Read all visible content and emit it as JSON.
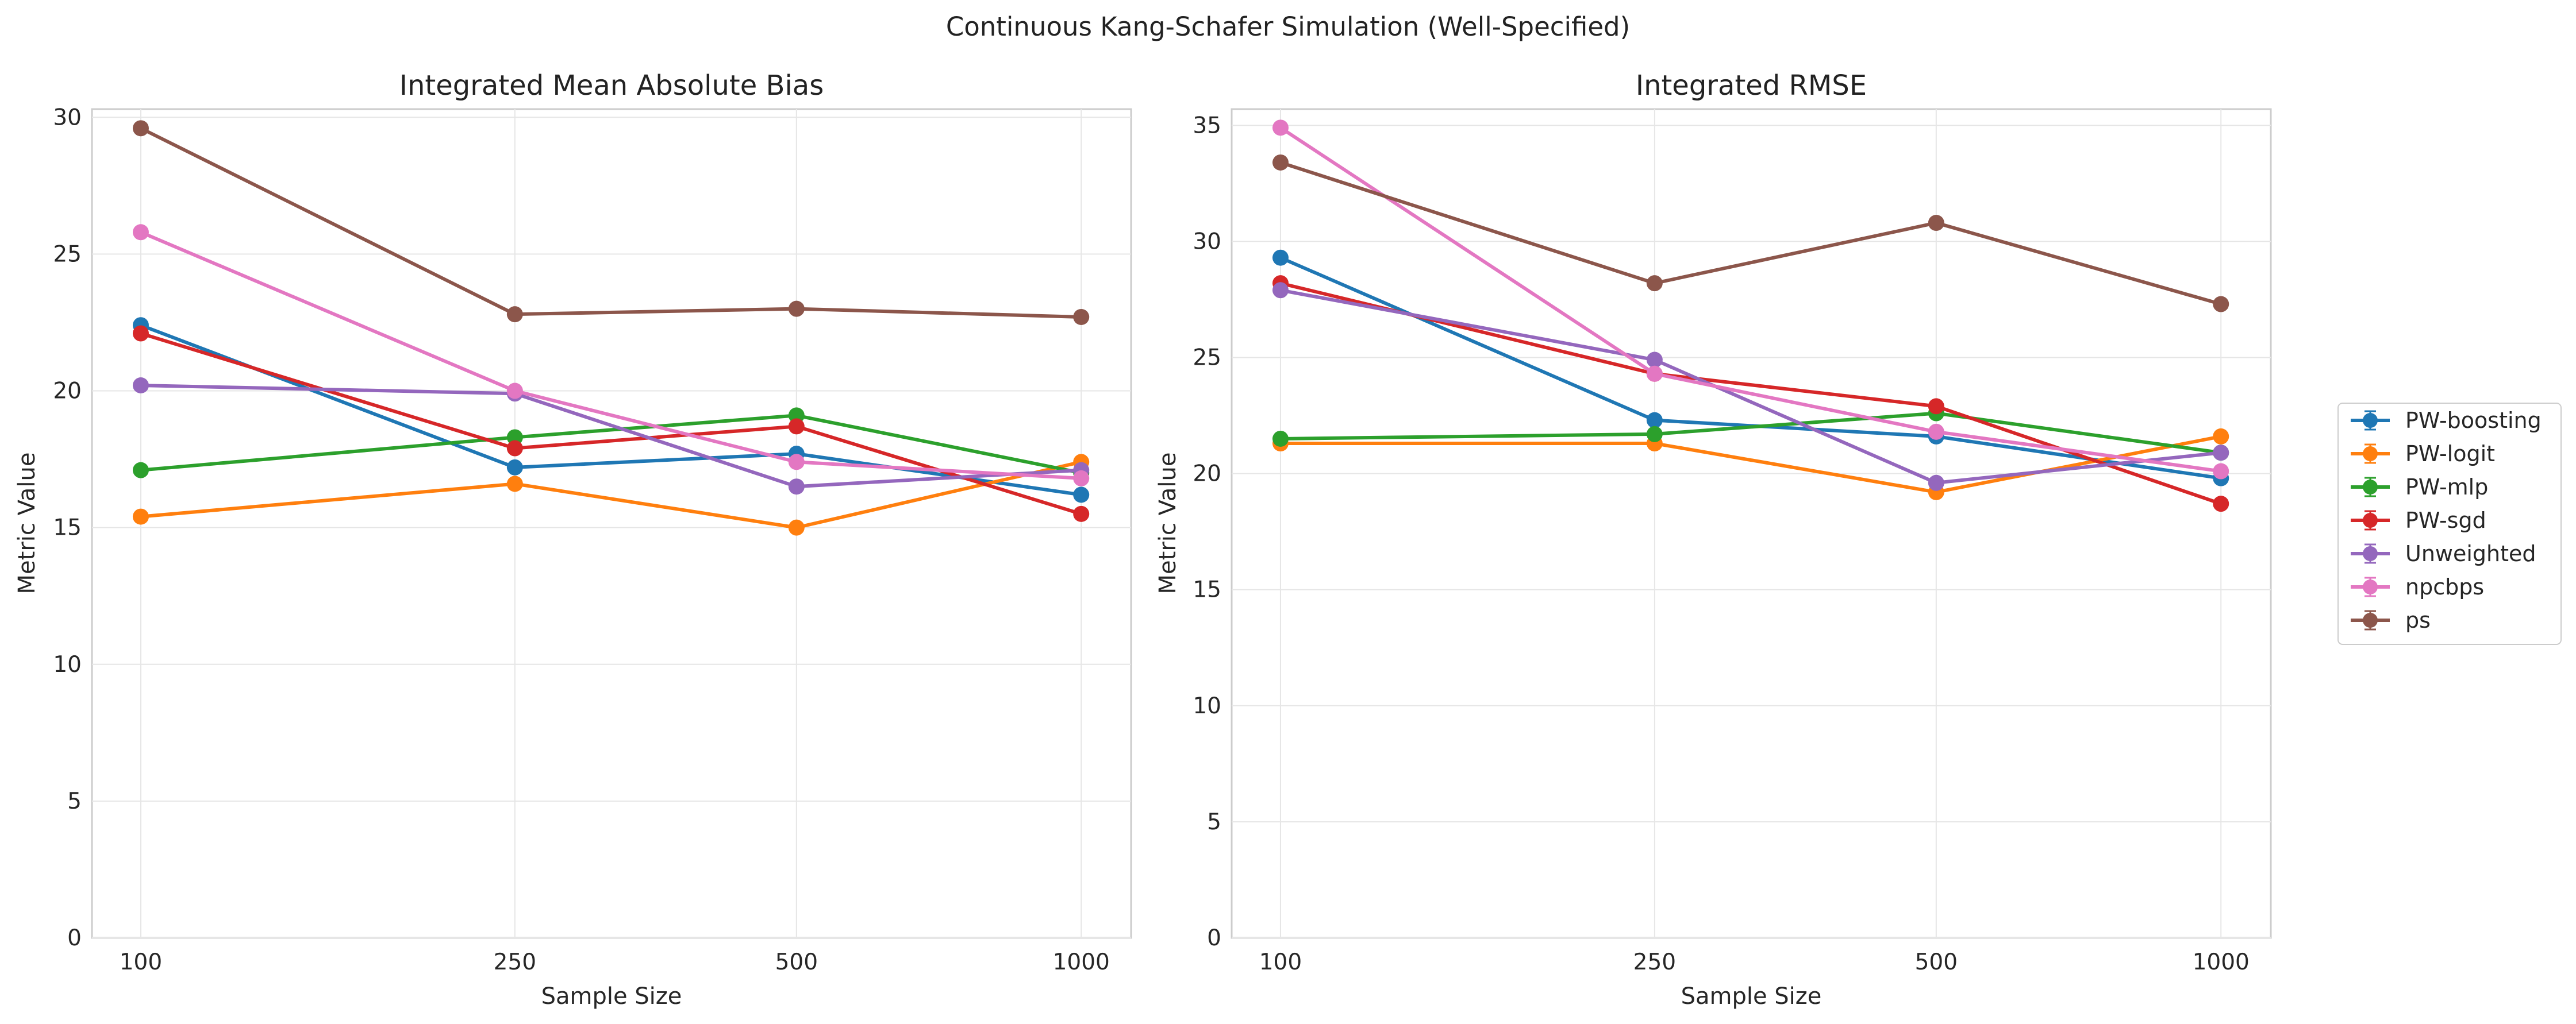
{
  "figure": {
    "suptitle": "Continuous Kang-Schafer Simulation (Well-Specified)"
  },
  "chart_data": [
    {
      "type": "line",
      "title": "Integrated Mean Absolute Bias",
      "xlabel": "Sample Size",
      "ylabel": "Metric Value",
      "x": [
        "100",
        "250",
        "500",
        "1000"
      ],
      "yticks": [
        "0",
        "5",
        "10",
        "15",
        "20",
        "25",
        "30"
      ],
      "ylim": [
        0,
        30.3
      ],
      "grid": true,
      "series": [
        {
          "name": "PW-boosting",
          "color": "#1f77b4",
          "values": [
            22.4,
            17.2,
            17.7,
            16.2
          ]
        },
        {
          "name": "PW-logit",
          "color": "#ff7f0e",
          "values": [
            15.4,
            16.6,
            15.0,
            17.4
          ]
        },
        {
          "name": "PW-mlp",
          "color": "#2ca02c",
          "values": [
            17.1,
            18.3,
            19.1,
            17.0
          ]
        },
        {
          "name": "PW-sgd",
          "color": "#d62728",
          "values": [
            22.1,
            17.9,
            18.7,
            15.5
          ]
        },
        {
          "name": "Unweighted",
          "color": "#9467bd",
          "values": [
            20.2,
            19.9,
            16.5,
            17.1
          ]
        },
        {
          "name": "npcbps",
          "color": "#e377c2",
          "values": [
            25.8,
            20.0,
            17.4,
            16.8
          ]
        },
        {
          "name": "ps",
          "color": "#8c564b",
          "values": [
            29.6,
            22.8,
            23.0,
            22.7
          ]
        }
      ]
    },
    {
      "type": "line",
      "title": "Integrated RMSE",
      "xlabel": "Sample Size",
      "ylabel": "Metric Value",
      "x": [
        "100",
        "250",
        "500",
        "1000"
      ],
      "yticks": [
        "0",
        "5",
        "10",
        "15",
        "20",
        "25",
        "30",
        "35"
      ],
      "ylim": [
        0,
        35.7
      ],
      "grid": true,
      "legend_position": "outside-right",
      "series": [
        {
          "name": "PW-boosting",
          "color": "#1f77b4",
          "values": [
            29.3,
            22.3,
            21.6,
            19.8
          ]
        },
        {
          "name": "PW-logit",
          "color": "#ff7f0e",
          "values": [
            21.3,
            21.3,
            19.2,
            21.6
          ]
        },
        {
          "name": "PW-mlp",
          "color": "#2ca02c",
          "values": [
            21.5,
            21.7,
            22.6,
            20.9
          ]
        },
        {
          "name": "PW-sgd",
          "color": "#d62728",
          "values": [
            28.2,
            24.3,
            22.9,
            18.7
          ]
        },
        {
          "name": "Unweighted",
          "color": "#9467bd",
          "values": [
            27.9,
            24.9,
            19.6,
            20.9
          ]
        },
        {
          "name": "npcbps",
          "color": "#e377c2",
          "values": [
            34.9,
            24.3,
            21.8,
            20.1
          ]
        },
        {
          "name": "ps",
          "color": "#8c564b",
          "values": [
            33.4,
            28.2,
            30.8,
            27.3
          ]
        }
      ]
    }
  ]
}
